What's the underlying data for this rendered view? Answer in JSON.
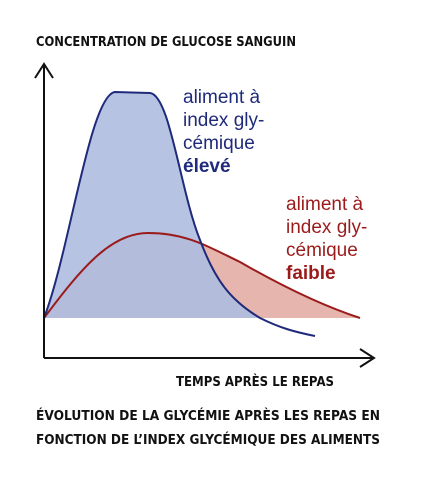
{
  "y_axis_label": "CONCENTRATION DE GLUCOSE SANGUIN",
  "x_axis_label": "TEMPS APRÈS LE REPAS",
  "curves": [
    {
      "label_lines": [
        "aliment à",
        "index gly-",
        "cémique"
      ],
      "emphasis": "élevé"
    },
    {
      "label_lines": [
        "aliment à",
        "index gly-",
        "cémique"
      ],
      "emphasis": "faible"
    }
  ],
  "caption": [
    "ÉVOLUTION DE LA GLYCÉMIE APRÈS LES REPAS EN",
    "FONCTION DE L’INDEX GLYCÉMIQUE DES ALIMENTS"
  ]
}
